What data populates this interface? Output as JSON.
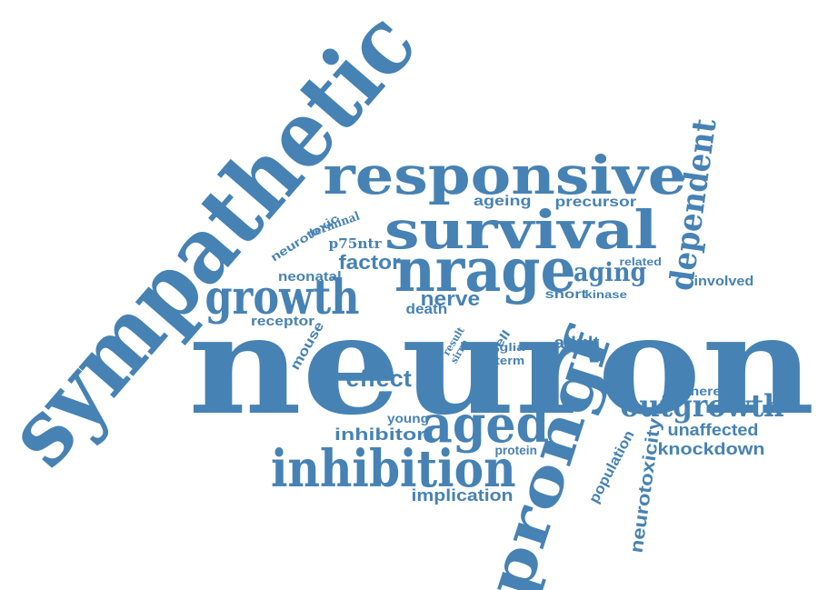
{
  "cloud": {
    "color": "#4682b4",
    "words": {
      "sympathetic": "sympathetic",
      "responsive": "responsive",
      "ageing": "ageing",
      "precursor": "precursor",
      "survival": "survival",
      "terminal": "terminal",
      "neurotoxic": "neurotoxic",
      "p75ntr": "p75ntr",
      "dependent": "dependent",
      "factor": "factor",
      "nrage": "nrage",
      "aging": "aging",
      "related": "related",
      "neonatal": "neonatal",
      "growth": "growth",
      "involved": "involved",
      "short": "short",
      "kinase": "kinase",
      "nerve": "nerve",
      "death": "death",
      "receptor": "receptor",
      "mouse": "mouse",
      "neuron": "neuron",
      "result": "result",
      "sirna": "sirna",
      "cell": "cell",
      "glia": "glia",
      "term": "term",
      "adult": "adult",
      "effect": "effect",
      "whereas": "whereas",
      "outgrowth": "outgrowth",
      "unaffected": "unaffected",
      "young": "young",
      "inhibitor": "inhibitor",
      "aged": "aged",
      "knockdown": "knockdown",
      "protein": "protein",
      "population": "population",
      "neurotoxicity": "neurotoxicity",
      "inhibition": "inhibition",
      "implication": "implication",
      "prongf": "prongf"
    }
  }
}
